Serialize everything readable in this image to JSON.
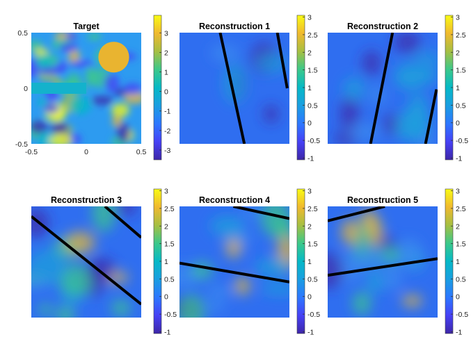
{
  "chart_data": [
    {
      "type": "heatmap",
      "title": "Target",
      "xlabel": "",
      "ylabel": "",
      "xlim": [
        -0.5,
        0.5
      ],
      "ylim": [
        -0.5,
        0.5
      ],
      "x_ticks": [
        "-0.5",
        "0",
        "0.5"
      ],
      "y_ticks": [
        "0.5",
        "0",
        "-0.5"
      ],
      "colorbar": {
        "limits": [
          -3.5,
          3.9
        ],
        "ticks": [
          "3",
          "2",
          "1",
          "0",
          "-1",
          "-2",
          "-3"
        ],
        "colormap": "parula"
      },
      "content": "Gaussian random field with a high-value disk at upper-right and a flat rectangle on the left",
      "disk": {
        "center": [
          0.25,
          0.28
        ],
        "radius": 0.14,
        "value": 2.3
      },
      "flat_rect": {
        "x": [
          -0.5,
          0.0
        ],
        "y": [
          -0.05,
          0.05
        ],
        "value": 0.1
      },
      "lines": []
    },
    {
      "type": "heatmap",
      "title": "Reconstruction 1",
      "colorbar": {
        "limits": [
          -1.05,
          3.05
        ],
        "ticks": [
          "3",
          "2.5",
          "2",
          "1.5",
          "1",
          "0.5",
          "0",
          "-0.5",
          "-1"
        ],
        "colormap": "parula"
      },
      "lines": [
        {
          "from": [
            0.37,
            0.0
          ],
          "to": [
            0.59,
            1.0
          ]
        },
        {
          "from": [
            0.89,
            0.0
          ],
          "to": [
            0.98,
            0.5
          ]
        }
      ]
    },
    {
      "type": "heatmap",
      "title": "Reconstruction 2",
      "colorbar": {
        "limits": [
          -1.05,
          3.05
        ],
        "ticks": [
          "3",
          "2.5",
          "2",
          "1.5",
          "1",
          "0.5",
          "0",
          "-0.5",
          "-1"
        ],
        "colormap": "parula"
      },
      "lines": [
        {
          "from": [
            0.59,
            0.0
          ],
          "to": [
            0.39,
            1.0
          ]
        },
        {
          "from": [
            0.99,
            0.51
          ],
          "to": [
            0.89,
            1.0
          ]
        }
      ]
    },
    {
      "type": "heatmap",
      "title": "Reconstruction 3",
      "colorbar": {
        "limits": [
          -1.05,
          3.05
        ],
        "ticks": [
          "3",
          "2.5",
          "2",
          "1.5",
          "1",
          "0.5",
          "0",
          "-0.5",
          "-1"
        ],
        "colormap": "parula"
      },
      "lines": [
        {
          "from": [
            0.0,
            0.09
          ],
          "to": [
            1.0,
            0.88
          ]
        },
        {
          "from": [
            0.67,
            0.0
          ],
          "to": [
            1.0,
            0.28
          ]
        }
      ]
    },
    {
      "type": "heatmap",
      "title": "Reconstruction 4",
      "colorbar": {
        "limits": [
          -1.05,
          3.05
        ],
        "ticks": [
          "3",
          "2.5",
          "2",
          "1.5",
          "1",
          "0.5",
          "0",
          "-0.5",
          "-1"
        ],
        "colormap": "parula"
      },
      "lines": [
        {
          "from": [
            0.0,
            0.51
          ],
          "to": [
            1.0,
            0.68
          ]
        },
        {
          "from": [
            0.49,
            0.0
          ],
          "to": [
            1.0,
            0.11
          ]
        }
      ]
    },
    {
      "type": "heatmap",
      "title": "Reconstruction 5",
      "colorbar": {
        "limits": [
          -1.05,
          3.05
        ],
        "ticks": [
          "3",
          "2.5",
          "2",
          "1.5",
          "1",
          "0.5",
          "0",
          "-0.5",
          "-1"
        ],
        "colormap": "parula"
      },
      "lines": [
        {
          "from": [
            0.0,
            0.62
          ],
          "to": [
            1.0,
            0.47
          ]
        },
        {
          "from": [
            0.0,
            0.13
          ],
          "to": [
            0.52,
            0.0
          ]
        }
      ]
    }
  ]
}
